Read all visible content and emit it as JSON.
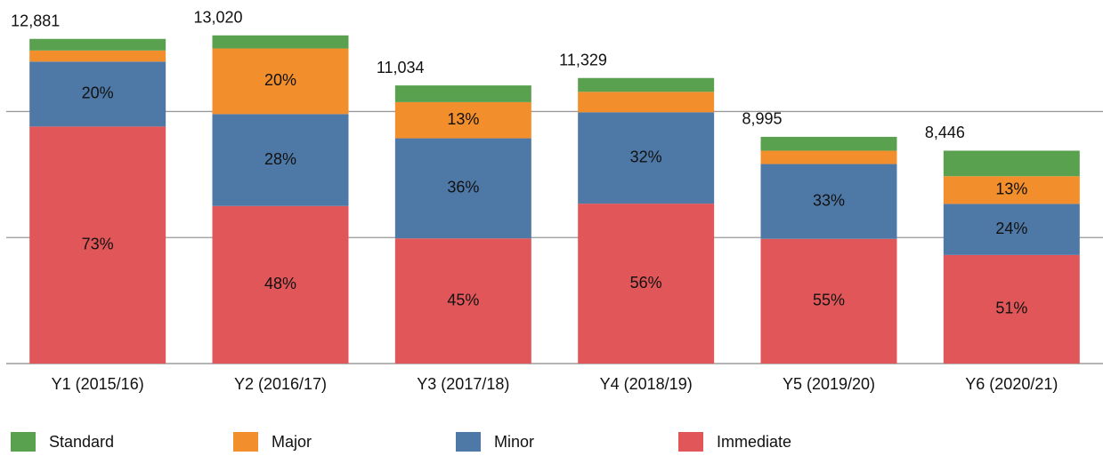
{
  "chart_data": {
    "type": "stacked_bar",
    "categories": [
      "Y1 (2015/16)",
      "Y2 (2016/17)",
      "Y3 (2017/18)",
      "Y4 (2018/19)",
      "Y5 (2019/20)",
      "Y6 (2020/21)"
    ],
    "series": [
      {
        "name": "Immediate",
        "color": "#e15759",
        "values": [
          9403,
          6250,
          4965,
          6344,
          4947,
          4307
        ],
        "value_labels": [
          "73%",
          "48%",
          "45%",
          "56%",
          "55%",
          "51%"
        ]
      },
      {
        "name": "Minor",
        "color": "#4e79a7",
        "values": [
          2576,
          3646,
          3972,
          3625,
          2968,
          2027
        ],
        "value_labels": [
          "20%",
          "28%",
          "36%",
          "32%",
          "33%",
          "24%"
        ]
      },
      {
        "name": "Major",
        "color": "#f28e2b",
        "values": [
          440,
          2604,
          1434,
          812,
          529,
          1098
        ],
        "value_labels": [
          null,
          "20%",
          "13%",
          null,
          null,
          "13%"
        ]
      },
      {
        "name": "Standard",
        "color": "#59a14f",
        "values": [
          462,
          520,
          663,
          548,
          551,
          1014
        ],
        "value_labels": [
          null,
          null,
          null,
          null,
          null,
          null
        ]
      }
    ],
    "totals": [
      12881,
      13020,
      11034,
      11329,
      8995,
      8446
    ],
    "total_labels": [
      "12,881",
      "13,020",
      "11,034",
      "11,329",
      "8,995",
      "8,446"
    ],
    "ylim": [
      0,
      14000
    ],
    "yticks": [
      0,
      5000,
      10000
    ],
    "grid": true
  }
}
